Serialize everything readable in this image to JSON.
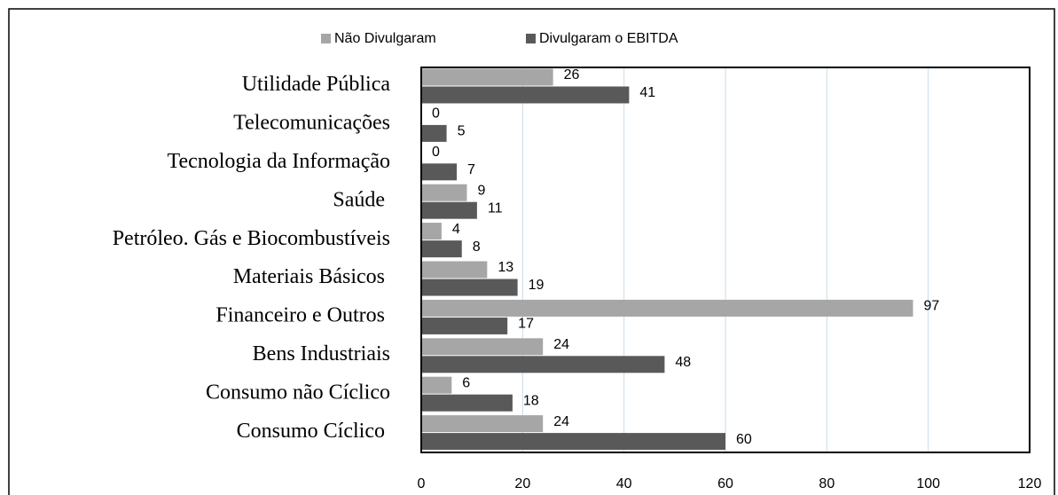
{
  "chart_data": {
    "type": "hbar",
    "categories": [
      "Utilidade Pública",
      "Telecomunicações",
      "Tecnologia da Informação",
      "Saúde ",
      "Petróleo. Gás e Biocombustíveis",
      "Materiais Básicos ",
      "Financeiro e Outros ",
      "Bens Industriais",
      "Consumo não Cíclico",
      "Consumo Cíclico "
    ],
    "series": [
      {
        "name": "Não Divulgaram",
        "color": "#a6a6a6",
        "values": [
          26,
          0,
          0,
          9,
          4,
          13,
          97,
          24,
          6,
          24
        ]
      },
      {
        "name": "Divulgaram o EBITDA",
        "color": "#595959",
        "values": [
          41,
          5,
          7,
          11,
          8,
          19,
          17,
          48,
          18,
          60
        ]
      }
    ],
    "xlim": [
      0,
      120
    ],
    "xticks": [
      0,
      20,
      40,
      60,
      80,
      100,
      120
    ],
    "grid": true,
    "legend": "top"
  }
}
